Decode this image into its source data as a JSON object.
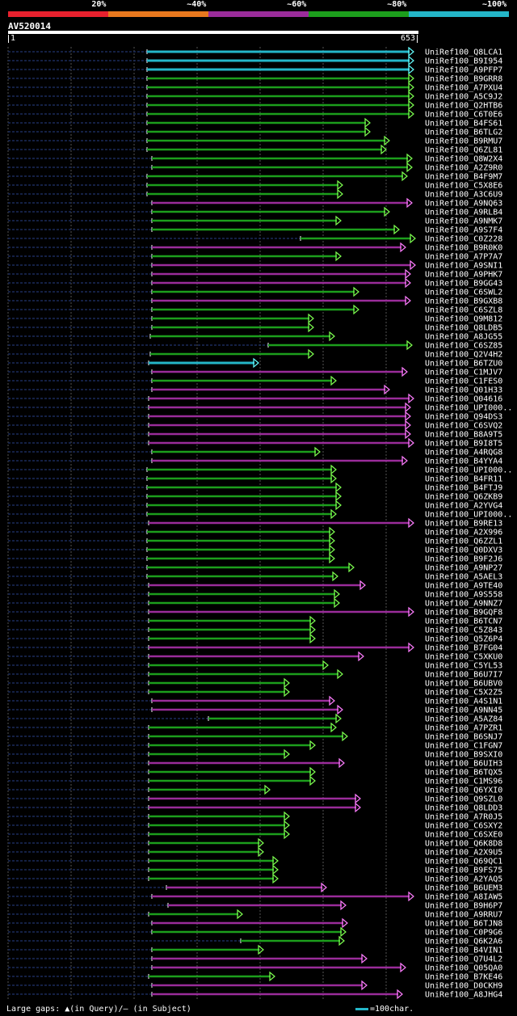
{
  "legend": {
    "segments": [
      {
        "label": "20%",
        "color": "#e8212e"
      },
      {
        "label": "~40%",
        "color": "#e8781e"
      },
      {
        "label": "~60%",
        "color": "#9a2c9a"
      },
      {
        "label": "~80%",
        "color": "#1c9e1c"
      },
      {
        "label": "~100%",
        "color": "#24b6c8"
      }
    ]
  },
  "query": {
    "id": "AV520014",
    "start": "1",
    "end": "653"
  },
  "colors": {
    "cyan": "#24b6c8",
    "green": "#1c9e1c",
    "purple": "#9a2c9a",
    "arrow_green": "#7dff50",
    "arrow_purple": "#ff7dff",
    "arrow_cyan": "#64ffff",
    "dash": "#1a2a5a",
    "grid": "#555555"
  },
  "hits": [
    {
      "name": "UniRef100_Q8LCA1",
      "color": "cyan"
    },
    {
      "name": "UniRef100_B9I954",
      "color": "cyan"
    },
    {
      "name": "UniRef100_A9PFP7",
      "color": "cyan"
    },
    {
      "name": "UniRef100_B9GRR8",
      "color": "green"
    },
    {
      "name": "UniRef100_A7PXU4",
      "color": "green"
    },
    {
      "name": "UniRef100_A5C9J2",
      "color": "green"
    },
    {
      "name": "UniRef100_Q2HTB6",
      "color": "green"
    },
    {
      "name": "UniRef100_C6T0E6",
      "color": "green"
    },
    {
      "name": "UniRef100_B4FS61",
      "color": "green"
    },
    {
      "name": "UniRef100_B6TLG2",
      "color": "green"
    },
    {
      "name": "UniRef100_B9RMU7",
      "color": "green"
    },
    {
      "name": "UniRef100_Q6ZL81",
      "color": "green"
    },
    {
      "name": "UniRef100_Q8W2X4",
      "color": "green"
    },
    {
      "name": "UniRef100_A2Z9R0",
      "color": "green"
    },
    {
      "name": "UniRef100_B4F9M7",
      "color": "green"
    },
    {
      "name": "UniRef100_C5X8E6",
      "color": "green"
    },
    {
      "name": "UniRef100_A3C6U9",
      "color": "green"
    },
    {
      "name": "UniRef100_A9NQ63",
      "color": "purple"
    },
    {
      "name": "UniRef100_A9RLB4",
      "color": "green"
    },
    {
      "name": "UniRef100_A9NMK7",
      "color": "green"
    },
    {
      "name": "UniRef100_A9S7F4",
      "color": "green"
    },
    {
      "name": "UniRef100_C0Z228",
      "color": "green"
    },
    {
      "name": "UniRef100_B9R0K0",
      "color": "purple"
    },
    {
      "name": "UniRef100_A7P7A7",
      "color": "green"
    },
    {
      "name": "UniRef100_A9SNI1",
      "color": "purple"
    },
    {
      "name": "UniRef100_A9PHK7",
      "color": "purple"
    },
    {
      "name": "UniRef100_B9GG43",
      "color": "purple"
    },
    {
      "name": "UniRef100_C6SWL2",
      "color": "green"
    },
    {
      "name": "UniRef100_B9GXB8",
      "color": "purple"
    },
    {
      "name": "UniRef100_C6SZL8",
      "color": "green"
    },
    {
      "name": "UniRef100_Q9M812",
      "color": "green"
    },
    {
      "name": "UniRef100_Q8LDB5",
      "color": "green"
    },
    {
      "name": "UniRef100_A8JG55",
      "color": "green"
    },
    {
      "name": "UniRef100_C6SZ85",
      "color": "green"
    },
    {
      "name": "UniRef100_Q2V4H2",
      "color": "green"
    },
    {
      "name": "UniRef100_B6TZU0",
      "color": "cyan"
    },
    {
      "name": "UniRef100_C1MJV7",
      "color": "purple"
    },
    {
      "name": "UniRef100_C1FES0",
      "color": "green"
    },
    {
      "name": "UniRef100_Q01H33",
      "color": "purple"
    },
    {
      "name": "UniRef100_Q04616",
      "color": "purple"
    },
    {
      "name": "UniRef100_UPI000..",
      "color": "purple"
    },
    {
      "name": "UniRef100_Q94DS3",
      "color": "purple"
    },
    {
      "name": "UniRef100_C6SVQ2",
      "color": "purple"
    },
    {
      "name": "UniRef100_B8A9T5",
      "color": "purple"
    },
    {
      "name": "UniRef100_B9I8T5",
      "color": "purple"
    },
    {
      "name": "UniRef100_A4RQG8",
      "color": "green"
    },
    {
      "name": "UniRef100_B4YYA4",
      "color": "purple"
    },
    {
      "name": "UniRef100_UPI000..",
      "color": "green"
    },
    {
      "name": "UniRef100_B4FR11",
      "color": "green"
    },
    {
      "name": "UniRef100_B4FTJ9",
      "color": "green"
    },
    {
      "name": "UniRef100_Q6ZKB9",
      "color": "green"
    },
    {
      "name": "UniRef100_A2YVG4",
      "color": "green"
    },
    {
      "name": "UniRef100_UPI000..",
      "color": "green"
    },
    {
      "name": "UniRef100_B9RE13",
      "color": "purple"
    },
    {
      "name": "UniRef100_A2X996",
      "color": "green"
    },
    {
      "name": "UniRef100_Q6ZZL1",
      "color": "green"
    },
    {
      "name": "UniRef100_Q0DXV3",
      "color": "green"
    },
    {
      "name": "UniRef100_B9F2J6",
      "color": "green"
    },
    {
      "name": "UniRef100_A9NP27",
      "color": "green"
    },
    {
      "name": "UniRef100_A5AEL3",
      "color": "green"
    },
    {
      "name": "UniRef100_A9TE40",
      "color": "purple"
    },
    {
      "name": "UniRef100_A9S558",
      "color": "green"
    },
    {
      "name": "UniRef100_A9NNZ7",
      "color": "green"
    },
    {
      "name": "UniRef100_B9GQF8",
      "color": "purple"
    },
    {
      "name": "UniRef100_B6TCN7",
      "color": "green"
    },
    {
      "name": "UniRef100_C5Z843",
      "color": "green"
    },
    {
      "name": "UniRef100_Q5Z6P4",
      "color": "green"
    },
    {
      "name": "UniRef100_B7FG04",
      "color": "purple"
    },
    {
      "name": "UniRef100_C5XKU0",
      "color": "purple"
    },
    {
      "name": "UniRef100_C5YL53",
      "color": "green"
    },
    {
      "name": "UniRef100_B6U7I7",
      "color": "green"
    },
    {
      "name": "UniRef100_B6UBV0",
      "color": "green"
    },
    {
      "name": "UniRef100_C5X2Z5",
      "color": "green"
    },
    {
      "name": "UniRef100_A4S1N1",
      "color": "purple"
    },
    {
      "name": "UniRef100_A9NN45",
      "color": "purple"
    },
    {
      "name": "UniRef100_A5AZ84",
      "color": "green"
    },
    {
      "name": "UniRef100_A7PZR1",
      "color": "green"
    },
    {
      "name": "UniRef100_B6SNJ7",
      "color": "green"
    },
    {
      "name": "UniRef100_C1FGN7",
      "color": "green"
    },
    {
      "name": "UniRef100_B9SXI0",
      "color": "green"
    },
    {
      "name": "UniRef100_B6UIH3",
      "color": "purple"
    },
    {
      "name": "UniRef100_B6TQX5",
      "color": "green"
    },
    {
      "name": "UniRef100_C1MS96",
      "color": "green"
    },
    {
      "name": "UniRef100_Q6YXI0",
      "color": "green"
    },
    {
      "name": "UniRef100_Q9SZL0",
      "color": "purple"
    },
    {
      "name": "UniRef100_Q8LDD3",
      "color": "purple"
    },
    {
      "name": "UniRef100_A7R0J5",
      "color": "green"
    },
    {
      "name": "UniRef100_C6SXY2",
      "color": "green"
    },
    {
      "name": "UniRef100_C6SXE0",
      "color": "green"
    },
    {
      "name": "UniRef100_Q6K8D8",
      "color": "green"
    },
    {
      "name": "UniRef100_A2X9U5",
      "color": "green"
    },
    {
      "name": "UniRef100_Q69QC1",
      "color": "green"
    },
    {
      "name": "UniRef100_B9FS75",
      "color": "green"
    },
    {
      "name": "UniRef100_A2YAQ5",
      "color": "green"
    },
    {
      "name": "UniRef100_B6UEM3",
      "color": "purple"
    },
    {
      "name": "UniRef100_A8IAW5",
      "color": "purple"
    },
    {
      "name": "UniRef100_B9H6P7",
      "color": "purple"
    },
    {
      "name": "UniRef100_A9RRU7",
      "color": "green"
    },
    {
      "name": "UniRef100_B6TJN8",
      "color": "purple"
    },
    {
      "name": "UniRef100_C0P9G6",
      "color": "green"
    },
    {
      "name": "UniRef100_Q6K2A6",
      "color": "green"
    },
    {
      "name": "UniRef100_B4VIN1",
      "color": "green"
    },
    {
      "name": "UniRef100_Q7U4L2",
      "color": "purple"
    },
    {
      "name": "UniRef100_Q05QA0",
      "color": "purple"
    },
    {
      "name": "UniRef100_B7KE46",
      "color": "green"
    },
    {
      "name": "UniRef100_D0CKH9",
      "color": "purple"
    },
    {
      "name": "UniRef100_A8JHG4",
      "color": "purple"
    }
  ],
  "footer": {
    "gaps_label": "Large gaps: ▲(in Query)/– (in Subject)",
    "scale_label": "=100char."
  }
}
